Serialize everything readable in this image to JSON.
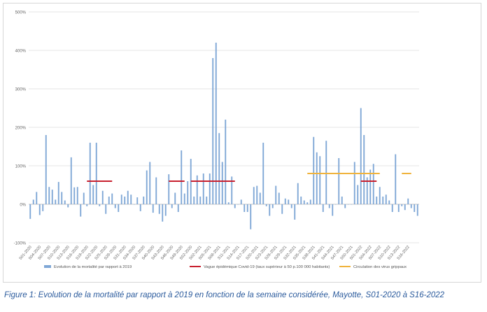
{
  "chart_data": {
    "type": "bar",
    "title": "",
    "caption": "Figure 1: Evolution de la mortalité par rapport à 2019 en fonction de la semaine considérée, Mayotte, S01-2020 à S16-2022",
    "ylabel": "",
    "xlabel": "",
    "ylim": [
      -100,
      500
    ],
    "yticks": [
      -100,
      0,
      100,
      200,
      300,
      400,
      500
    ],
    "ytick_labels": [
      "-100%",
      "0%",
      "100%",
      "200%",
      "300%",
      "400%",
      "500%"
    ],
    "xtick_labels": [
      "S01-2020",
      "S04-2020",
      "S07-2020",
      "S10-2020",
      "S13-2020",
      "S16-2020",
      "S19-2020",
      "S22-2020",
      "S25-2020",
      "S28-2020",
      "S31-2020",
      "S34-2020",
      "S37-2020",
      "S40-2020",
      "S43-2020",
      "S46-2020",
      "S49-2020",
      "S52-2020",
      "S02-2021",
      "S05-2021",
      "S08-2021",
      "S11-2021",
      "S14-2021",
      "S17-2021",
      "S20-2021",
      "S23-2021",
      "S26-2021",
      "S29-2021",
      "S32-2021",
      "S35-2021",
      "S38-2021",
      "S41-2021",
      "S44-2021",
      "S47-2021",
      "S50-2021",
      "S01-2022",
      "S04-2022",
      "S07-2022",
      "S10-2022",
      "S13-2022",
      "S16-2022"
    ],
    "series": [
      {
        "name": "Evolution de la mortalité par rapport à 2019",
        "kind": "bar",
        "color": "#7fa7d6",
        "values": [
          -38,
          12,
          32,
          -28,
          -18,
          180,
          45,
          38,
          12,
          58,
          32,
          10,
          -8,
          122,
          44,
          45,
          -32,
          30,
          -5,
          160,
          50,
          160,
          -5,
          35,
          -25,
          20,
          28,
          -10,
          -20,
          25,
          20,
          35,
          25,
          0,
          18,
          -18,
          20,
          88,
          110,
          -22,
          70,
          -25,
          -45,
          -30,
          78,
          -10,
          30,
          -20,
          140,
          28,
          60,
          118,
          20,
          75,
          20,
          80,
          20,
          80,
          380,
          420,
          185,
          110,
          220,
          5,
          72,
          -10,
          0,
          12,
          -20,
          -20,
          -65,
          45,
          48,
          30,
          160,
          -5,
          -30,
          -10,
          48,
          30,
          -25,
          15,
          12,
          -10,
          -40,
          55,
          20,
          10,
          5,
          12,
          175,
          135,
          125,
          -20,
          165,
          -10,
          -30,
          0,
          120,
          20,
          -10,
          0,
          0,
          110,
          50,
          250,
          180,
          70,
          90,
          105,
          20,
          45,
          20,
          25,
          10,
          -20,
          130,
          -20,
          -5,
          -15,
          15,
          -10,
          -20,
          -30
        ]
      },
      {
        "name": "Vague épidémique Covid-19 (taux supérieur à 50 p.100 000 habitants)",
        "kind": "segment",
        "color": "#c8202f",
        "segments": [
          {
            "x_start": "S19-2020",
            "x_end": "S27-2020",
            "y": 60
          },
          {
            "x_start": "S45-2020",
            "x_end": "S50-2020",
            "y": 60
          },
          {
            "x_start": "S52-2020",
            "x_end": "S13-2021",
            "y": 60
          },
          {
            "x_start": "S01-2022",
            "x_end": "S06-2022",
            "y": 60
          }
        ]
      },
      {
        "name": "Circulation des virus grippaux",
        "kind": "segment",
        "color": "#f0b33c",
        "segments": [
          {
            "x_start": "S36-2021",
            "x_end": "S07-2022",
            "y": 80
          },
          {
            "x_start": "S14-2022",
            "x_end": "S17-2022",
            "y": 80
          }
        ]
      }
    ],
    "grid": "horizontal",
    "legend_position": "bottom"
  }
}
